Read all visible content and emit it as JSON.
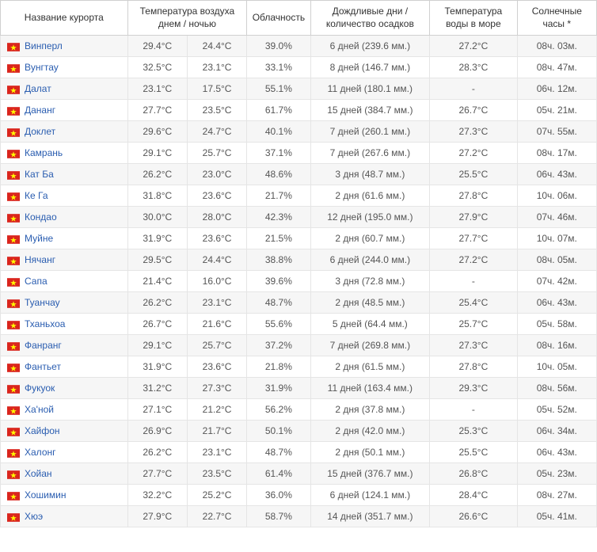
{
  "headers": {
    "resort": "Название курорта",
    "temp": "Температура воздуха днем / ночью",
    "cloud": "Облачность",
    "rain": "Дождливые дни / количество осадков",
    "sea": "Температура воды в море",
    "sun": "Солнечные часы *"
  },
  "flag": {
    "bg": "#da251d",
    "star": "#ffff00"
  },
  "link_color": "#2a5db0",
  "text_color": "#555555",
  "border_color": "#e5e5e5",
  "row_stripe_bg": "#f6f6f6",
  "rows": [
    {
      "resort": "Винперл",
      "day": "29.4°C",
      "night": "24.4°C",
      "cloud": "39.0%",
      "rain": "6 дней (239.6 мм.)",
      "sea": "27.2°C",
      "sun": "08ч. 03м."
    },
    {
      "resort": "Вунгтау",
      "day": "32.5°C",
      "night": "23.1°C",
      "cloud": "33.1%",
      "rain": "8 дней (146.7 мм.)",
      "sea": "28.3°C",
      "sun": "08ч. 47м."
    },
    {
      "resort": "Далат",
      "day": "23.1°C",
      "night": "17.5°C",
      "cloud": "55.1%",
      "rain": "11 дней (180.1 мм.)",
      "sea": "-",
      "sun": "06ч. 12м."
    },
    {
      "resort": "Дананг",
      "day": "27.7°C",
      "night": "23.5°C",
      "cloud": "61.7%",
      "rain": "15 дней (384.7 мм.)",
      "sea": "26.7°C",
      "sun": "05ч. 21м."
    },
    {
      "resort": "Доклет",
      "day": "29.6°C",
      "night": "24.7°C",
      "cloud": "40.1%",
      "rain": "7 дней (260.1 мм.)",
      "sea": "27.3°C",
      "sun": "07ч. 55м."
    },
    {
      "resort": "Камрань",
      "day": "29.1°C",
      "night": "25.7°C",
      "cloud": "37.1%",
      "rain": "7 дней (267.6 мм.)",
      "sea": "27.2°C",
      "sun": "08ч. 17м."
    },
    {
      "resort": "Кат Ба",
      "day": "26.2°C",
      "night": "23.0°C",
      "cloud": "48.6%",
      "rain": "3 дня (48.7 мм.)",
      "sea": "25.5°C",
      "sun": "06ч. 43м."
    },
    {
      "resort": "Ке Га",
      "day": "31.8°C",
      "night": "23.6°C",
      "cloud": "21.7%",
      "rain": "2 дня (61.6 мм.)",
      "sea": "27.8°C",
      "sun": "10ч. 06м."
    },
    {
      "resort": "Кондао",
      "day": "30.0°C",
      "night": "28.0°C",
      "cloud": "42.3%",
      "rain": "12 дней (195.0 мм.)",
      "sea": "27.9°C",
      "sun": "07ч. 46м."
    },
    {
      "resort": "Муйне",
      "day": "31.9°C",
      "night": "23.6°C",
      "cloud": "21.5%",
      "rain": "2 дня (60.7 мм.)",
      "sea": "27.7°C",
      "sun": "10ч. 07м."
    },
    {
      "resort": "Нячанг",
      "day": "29.5°C",
      "night": "24.4°C",
      "cloud": "38.8%",
      "rain": "6 дней (244.0 мм.)",
      "sea": "27.2°C",
      "sun": "08ч. 05м."
    },
    {
      "resort": "Сапа",
      "day": "21.4°C",
      "night": "16.0°C",
      "cloud": "39.6%",
      "rain": "3 дня (72.8 мм.)",
      "sea": "-",
      "sun": "07ч. 42м."
    },
    {
      "resort": "Туанчау",
      "day": "26.2°C",
      "night": "23.1°C",
      "cloud": "48.7%",
      "rain": "2 дня (48.5 мм.)",
      "sea": "25.4°C",
      "sun": "06ч. 43м."
    },
    {
      "resort": "Тханьхоа",
      "day": "26.7°C",
      "night": "21.6°C",
      "cloud": "55.6%",
      "rain": "5 дней (64.4 мм.)",
      "sea": "25.7°C",
      "sun": "05ч. 58м."
    },
    {
      "resort": "Фанранг",
      "day": "29.1°C",
      "night": "25.7°C",
      "cloud": "37.2%",
      "rain": "7 дней (269.8 мм.)",
      "sea": "27.3°C",
      "sun": "08ч. 16м."
    },
    {
      "resort": "Фантьет",
      "day": "31.9°C",
      "night": "23.6°C",
      "cloud": "21.8%",
      "rain": "2 дня (61.5 мм.)",
      "sea": "27.8°C",
      "sun": "10ч. 05м."
    },
    {
      "resort": "Фукуок",
      "day": "31.2°C",
      "night": "27.3°C",
      "cloud": "31.9%",
      "rain": "11 дней (163.4 мм.)",
      "sea": "29.3°C",
      "sun": "08ч. 56м."
    },
    {
      "resort": "Ха'ной",
      "day": "27.1°C",
      "night": "21.2°C",
      "cloud": "56.2%",
      "rain": "2 дня (37.8 мм.)",
      "sea": "-",
      "sun": "05ч. 52м."
    },
    {
      "resort": "Хайфон",
      "day": "26.9°C",
      "night": "21.7°C",
      "cloud": "50.1%",
      "rain": "2 дня (42.0 мм.)",
      "sea": "25.3°C",
      "sun": "06ч. 34м."
    },
    {
      "resort": "Халонг",
      "day": "26.2°C",
      "night": "23.1°C",
      "cloud": "48.7%",
      "rain": "2 дня (50.1 мм.)",
      "sea": "25.5°C",
      "sun": "06ч. 43м."
    },
    {
      "resort": "Хойан",
      "day": "27.7°C",
      "night": "23.5°C",
      "cloud": "61.4%",
      "rain": "15 дней (376.7 мм.)",
      "sea": "26.8°C",
      "sun": "05ч. 23м."
    },
    {
      "resort": "Хошимин",
      "day": "32.2°C",
      "night": "25.2°C",
      "cloud": "36.0%",
      "rain": "6 дней (124.1 мм.)",
      "sea": "28.4°C",
      "sun": "08ч. 27м."
    },
    {
      "resort": "Хюэ",
      "day": "27.9°C",
      "night": "22.7°C",
      "cloud": "58.7%",
      "rain": "14 дней (351.7 мм.)",
      "sea": "26.6°C",
      "sun": "05ч. 41м."
    }
  ]
}
